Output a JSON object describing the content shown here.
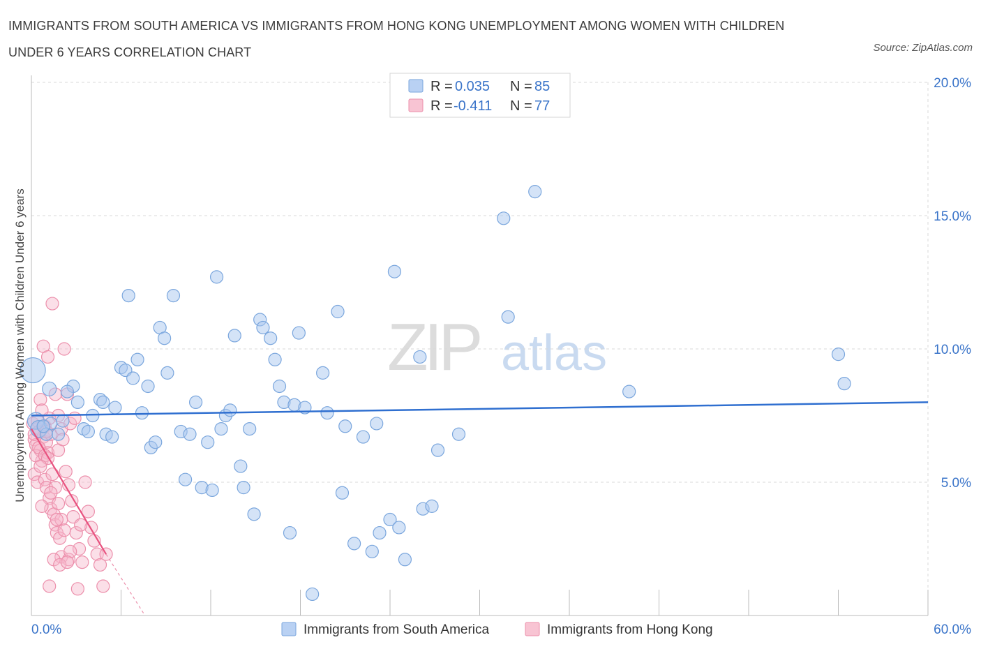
{
  "header": {
    "title_line1": "IMMIGRANTS FROM SOUTH AMERICA VS IMMIGRANTS FROM HONG KONG UNEMPLOYMENT AMONG WOMEN WITH CHILDREN",
    "title_line2": "UNDER 6 YEARS CORRELATION CHART",
    "source": "Source: ZipAtlas.com"
  },
  "watermark": {
    "zip": "ZIP",
    "atlas": "atlas"
  },
  "legend_top": {
    "rows": [
      {
        "r_label": "R =",
        "r_value": "0.035",
        "n_label": "N =",
        "n_value": "85"
      },
      {
        "r_label": "R =",
        "r_value": "-0.411",
        "n_label": "N =",
        "n_value": "77"
      }
    ]
  },
  "colors": {
    "blue_fill": "#a9c8f0",
    "blue_stroke": "#7aa6dd",
    "blue_line": "#2f6fd0",
    "pink_fill": "#f6b8cb",
    "pink_stroke": "#ec8fab",
    "pink_line": "#e8527f",
    "value_text": "#3a74c9",
    "grid": "#d8d8d8",
    "axis_text": "#3a74c9"
  },
  "chart_data": {
    "type": "scatter",
    "title": "IMMIGRANTS FROM SOUTH AMERICA VS IMMIGRANTS FROM HONG KONG UNEMPLOYMENT AMONG WOMEN WITH CHILDREN UNDER 6 YEARS CORRELATION CHART",
    "xlabel": "",
    "ylabel": "Unemployment Among Women with Children Under 6 years",
    "xlim": [
      0,
      60
    ],
    "ylim": [
      0,
      20
    ],
    "x_tick_labels": [
      "0.0%",
      "60.0%"
    ],
    "y_ticks": [
      5,
      10,
      15,
      20
    ],
    "y_tick_labels": [
      "5.0%",
      "10.0%",
      "15.0%",
      "20.0%"
    ],
    "grid": true,
    "legend_placement": "bottom-center",
    "series": [
      {
        "name": "Immigrants from South America",
        "color": "blue",
        "r": 0.035,
        "n": 85,
        "trend": {
          "x": [
            0,
            60
          ],
          "y": [
            7.5,
            8.0
          ]
        },
        "points": [
          [
            0.1,
            9.2,
            18
          ],
          [
            0.3,
            7.3,
            12
          ],
          [
            0.5,
            7.0,
            12
          ],
          [
            1.2,
            8.5,
            10
          ],
          [
            1.3,
            7.2,
            9
          ],
          [
            1.0,
            6.8,
            9
          ],
          [
            2.1,
            7.3,
            9
          ],
          [
            2.8,
            8.6,
            9
          ],
          [
            3.1,
            8.0,
            9
          ],
          [
            3.5,
            7.0,
            9
          ],
          [
            3.8,
            6.9,
            9
          ],
          [
            4.1,
            7.5,
            9
          ],
          [
            4.6,
            8.1,
            9
          ],
          [
            4.8,
            8.0,
            9
          ],
          [
            5.0,
            6.8,
            9
          ],
          [
            5.4,
            6.7,
            9
          ],
          [
            5.6,
            7.8,
            9
          ],
          [
            6.0,
            9.3,
            9
          ],
          [
            6.3,
            9.2,
            9
          ],
          [
            6.5,
            12.0,
            9
          ],
          [
            6.8,
            8.9,
            9
          ],
          [
            7.1,
            9.6,
            9
          ],
          [
            7.4,
            7.6,
            9
          ],
          [
            7.8,
            8.6,
            9
          ],
          [
            8.0,
            6.3,
            9
          ],
          [
            8.3,
            6.5,
            9
          ],
          [
            8.6,
            10.8,
            9
          ],
          [
            8.9,
            10.4,
            9
          ],
          [
            9.1,
            9.1,
            9
          ],
          [
            9.5,
            12.0,
            9
          ],
          [
            10.0,
            6.9,
            9
          ],
          [
            10.3,
            5.1,
            9
          ],
          [
            10.6,
            6.8,
            9
          ],
          [
            11.0,
            8.0,
            9
          ],
          [
            11.4,
            4.8,
            9
          ],
          [
            11.8,
            6.5,
            9
          ],
          [
            12.1,
            4.7,
            9
          ],
          [
            12.4,
            12.7,
            9
          ],
          [
            12.7,
            7.0,
            9
          ],
          [
            13.0,
            7.5,
            9
          ],
          [
            13.3,
            7.7,
            9
          ],
          [
            13.6,
            10.5,
            9
          ],
          [
            14.0,
            5.6,
            9
          ],
          [
            14.2,
            4.8,
            9
          ],
          [
            14.6,
            7.0,
            9
          ],
          [
            14.9,
            3.8,
            9
          ],
          [
            15.3,
            11.1,
            9
          ],
          [
            15.5,
            10.8,
            9
          ],
          [
            16.0,
            10.4,
            9
          ],
          [
            16.3,
            9.6,
            9
          ],
          [
            16.6,
            8.6,
            9
          ],
          [
            16.9,
            8.0,
            9
          ],
          [
            17.3,
            3.1,
            9
          ],
          [
            17.6,
            7.9,
            9
          ],
          [
            17.9,
            10.6,
            9
          ],
          [
            18.3,
            7.8,
            9
          ],
          [
            18.8,
            0.8,
            9
          ],
          [
            19.5,
            9.1,
            9
          ],
          [
            19.8,
            7.6,
            9
          ],
          [
            20.5,
            11.4,
            9
          ],
          [
            20.8,
            4.6,
            9
          ],
          [
            21.0,
            7.1,
            9
          ],
          [
            21.6,
            2.7,
            9
          ],
          [
            22.2,
            6.7,
            9
          ],
          [
            22.8,
            2.4,
            9
          ],
          [
            23.1,
            7.2,
            9
          ],
          [
            23.3,
            3.1,
            9
          ],
          [
            24.0,
            3.6,
            9
          ],
          [
            24.3,
            12.9,
            9
          ],
          [
            24.6,
            3.3,
            9
          ],
          [
            25.0,
            2.1,
            9
          ],
          [
            26.0,
            9.7,
            9
          ],
          [
            26.2,
            4.0,
            9
          ],
          [
            26.8,
            4.1,
            9
          ],
          [
            27.2,
            6.2,
            9
          ],
          [
            28.6,
            6.8,
            9
          ],
          [
            31.6,
            14.9,
            9
          ],
          [
            31.9,
            11.2,
            9
          ],
          [
            33.7,
            15.9,
            9
          ],
          [
            40.0,
            8.4,
            9
          ],
          [
            54.0,
            9.8,
            9
          ],
          [
            54.4,
            8.7,
            9
          ],
          [
            0.8,
            7.1,
            9
          ],
          [
            2.4,
            8.4,
            9
          ],
          [
            1.8,
            6.8,
            9
          ]
        ]
      },
      {
        "name": "Immigrants from Hong Kong",
        "color": "pink",
        "r": -0.411,
        "n": 77,
        "trend": {
          "x": [
            0,
            5.0
          ],
          "y": [
            7.0,
            2.3
          ]
        },
        "trend_extension": {
          "x": [
            5.0,
            7.6
          ],
          "y": [
            2.3,
            0.0
          ]
        },
        "points": [
          [
            0.1,
            7.2,
            9
          ],
          [
            0.2,
            6.6,
            9
          ],
          [
            0.3,
            6.4,
            9
          ],
          [
            0.4,
            7.0,
            9
          ],
          [
            0.5,
            6.9,
            9
          ],
          [
            0.6,
            6.2,
            9
          ],
          [
            0.7,
            5.8,
            9
          ],
          [
            0.2,
            5.3,
            9
          ],
          [
            0.4,
            5.0,
            9
          ],
          [
            0.8,
            6.7,
            9
          ],
          [
            0.9,
            7.1,
            9
          ],
          [
            1.0,
            6.5,
            9
          ],
          [
            1.1,
            6.1,
            9
          ],
          [
            1.2,
            7.4,
            9
          ],
          [
            1.3,
            6.8,
            9
          ],
          [
            0.6,
            8.1,
            9
          ],
          [
            0.7,
            7.7,
            9
          ],
          [
            0.8,
            10.1,
            9
          ],
          [
            1.1,
            9.7,
            9
          ],
          [
            1.4,
            11.7,
            9
          ],
          [
            1.6,
            8.3,
            9
          ],
          [
            1.8,
            7.5,
            9
          ],
          [
            2.0,
            7.0,
            9
          ],
          [
            2.2,
            10.0,
            9
          ],
          [
            2.4,
            8.3,
            9
          ],
          [
            2.6,
            7.2,
            9
          ],
          [
            0.9,
            5.1,
            9
          ],
          [
            1.0,
            4.8,
            9
          ],
          [
            1.2,
            4.4,
            9
          ],
          [
            1.3,
            4.0,
            9
          ],
          [
            1.5,
            3.8,
            9
          ],
          [
            1.6,
            3.4,
            9
          ],
          [
            1.7,
            3.1,
            9
          ],
          [
            1.9,
            2.9,
            9
          ],
          [
            1.4,
            5.3,
            9
          ],
          [
            1.6,
            4.8,
            9
          ],
          [
            1.8,
            4.2,
            9
          ],
          [
            2.0,
            3.6,
            9
          ],
          [
            2.2,
            3.2,
            9
          ],
          [
            2.3,
            5.4,
            9
          ],
          [
            2.5,
            4.9,
            9
          ],
          [
            2.7,
            4.3,
            9
          ],
          [
            2.8,
            3.7,
            9
          ],
          [
            3.0,
            3.1,
            9
          ],
          [
            3.2,
            2.5,
            9
          ],
          [
            3.4,
            2.0,
            9
          ],
          [
            3.6,
            5.0,
            9
          ],
          [
            3.8,
            3.9,
            9
          ],
          [
            4.0,
            3.3,
            9
          ],
          [
            4.2,
            2.8,
            9
          ],
          [
            4.4,
            2.3,
            9
          ],
          [
            4.6,
            1.9,
            9
          ],
          [
            4.8,
            1.1,
            9
          ],
          [
            1.2,
            1.1,
            9
          ],
          [
            2.0,
            2.2,
            9
          ],
          [
            2.5,
            2.1,
            9
          ],
          [
            3.1,
            1.0,
            9
          ],
          [
            1.5,
            2.1,
            9
          ],
          [
            1.9,
            1.9,
            9
          ],
          [
            0.3,
            6.0,
            9
          ],
          [
            0.5,
            6.3,
            9
          ],
          [
            0.9,
            6.0,
            9
          ],
          [
            1.0,
            6.9,
            9
          ],
          [
            1.1,
            5.9,
            9
          ],
          [
            0.6,
            5.6,
            9
          ],
          [
            0.2,
            6.8,
            9
          ],
          [
            0.4,
            7.3,
            9
          ],
          [
            1.8,
            6.2,
            9
          ],
          [
            2.1,
            6.6,
            9
          ],
          [
            2.9,
            7.4,
            9
          ],
          [
            1.3,
            4.6,
            9
          ],
          [
            1.7,
            3.6,
            9
          ],
          [
            2.6,
            2.4,
            9
          ],
          [
            3.3,
            3.4,
            9
          ],
          [
            0.7,
            4.1,
            9
          ],
          [
            5.0,
            2.3,
            9
          ],
          [
            2.4,
            2.0,
            9
          ]
        ]
      }
    ]
  },
  "legend_bottom": {
    "items": [
      {
        "label": "Immigrants from South America"
      },
      {
        "label": "Immigrants from Hong Kong"
      }
    ]
  }
}
